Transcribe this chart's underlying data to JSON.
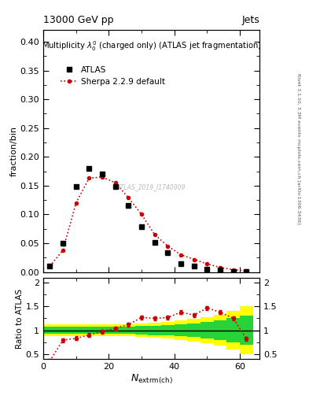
{
  "title_left": "13000 GeV pp",
  "title_right": "Jets",
  "main_title": "Multiplicity $\\lambda_0^0$ (charged only) (ATLAS jet fragmentation)",
  "xlabel": "$N_\\mathrm{extrm(ch)}$",
  "ylabel_main": "fraction/bin",
  "ylabel_ratio": "Ratio to ATLAS",
  "right_label": "Rivet 3.1.10, 3.3M events",
  "right_label2": "mcplots.cern.ch [arXiv:1306.3436]",
  "watermark": "ATLAS_2019_I1740909",
  "atlas_x": [
    2,
    6,
    10,
    14,
    18,
    22,
    26,
    30,
    34,
    38,
    42,
    46,
    50,
    54,
    58,
    62
  ],
  "atlas_y": [
    0.01,
    0.05,
    0.148,
    0.18,
    0.17,
    0.148,
    0.115,
    0.079,
    0.052,
    0.033,
    0.015,
    0.01,
    0.005,
    0.003,
    0.001,
    0.0005
  ],
  "sherpa_x": [
    2,
    6,
    10,
    14,
    18,
    22,
    26,
    30,
    34,
    38,
    42,
    46,
    50,
    54,
    58,
    62
  ],
  "sherpa_y": [
    0.01,
    0.038,
    0.12,
    0.163,
    0.165,
    0.155,
    0.129,
    0.1,
    0.065,
    0.045,
    0.03,
    0.022,
    0.014,
    0.008,
    0.004,
    0.002
  ],
  "ratio_x": [
    2,
    6,
    10,
    14,
    18,
    22,
    26,
    30,
    34,
    38,
    42,
    46,
    50,
    54,
    58,
    62
  ],
  "ratio_y": [
    0.35,
    0.79,
    0.83,
    0.9,
    0.97,
    1.04,
    1.12,
    1.27,
    1.25,
    1.27,
    1.38,
    1.32,
    1.47,
    1.38,
    1.25,
    0.82
  ],
  "band_x_edges": [
    0,
    4,
    8,
    12,
    16,
    20,
    24,
    28,
    32,
    36,
    40,
    44,
    48,
    52,
    56,
    60,
    64
  ],
  "green_band_upper": [
    1.07,
    1.07,
    1.07,
    1.07,
    1.07,
    1.07,
    1.08,
    1.09,
    1.1,
    1.11,
    1.12,
    1.14,
    1.17,
    1.2,
    1.25,
    1.3
  ],
  "green_band_lower": [
    0.93,
    0.93,
    0.93,
    0.93,
    0.93,
    0.93,
    0.92,
    0.91,
    0.9,
    0.89,
    0.88,
    0.86,
    0.83,
    0.8,
    0.75,
    0.7
  ],
  "yellow_band_upper": [
    1.12,
    1.12,
    1.12,
    1.12,
    1.12,
    1.12,
    1.13,
    1.14,
    1.16,
    1.18,
    1.2,
    1.24,
    1.28,
    1.33,
    1.4,
    1.5
  ],
  "yellow_band_lower": [
    0.88,
    0.88,
    0.88,
    0.88,
    0.88,
    0.88,
    0.87,
    0.86,
    0.84,
    0.82,
    0.8,
    0.76,
    0.72,
    0.67,
    0.6,
    0.5
  ],
  "xlim": [
    0,
    66
  ],
  "ylim_main": [
    0.0,
    0.42
  ],
  "ylim_ratio": [
    0.4,
    2.1
  ],
  "yticks_main": [
    0.0,
    0.05,
    0.1,
    0.15,
    0.2,
    0.25,
    0.3,
    0.35,
    0.4
  ],
  "yticks_ratio": [
    0.5,
    1.0,
    1.5,
    2.0
  ],
  "color_atlas": "#000000",
  "color_sherpa": "#cc0000",
  "color_green": "#00cc44",
  "color_yellow": "#ffff00",
  "background": "#ffffff"
}
